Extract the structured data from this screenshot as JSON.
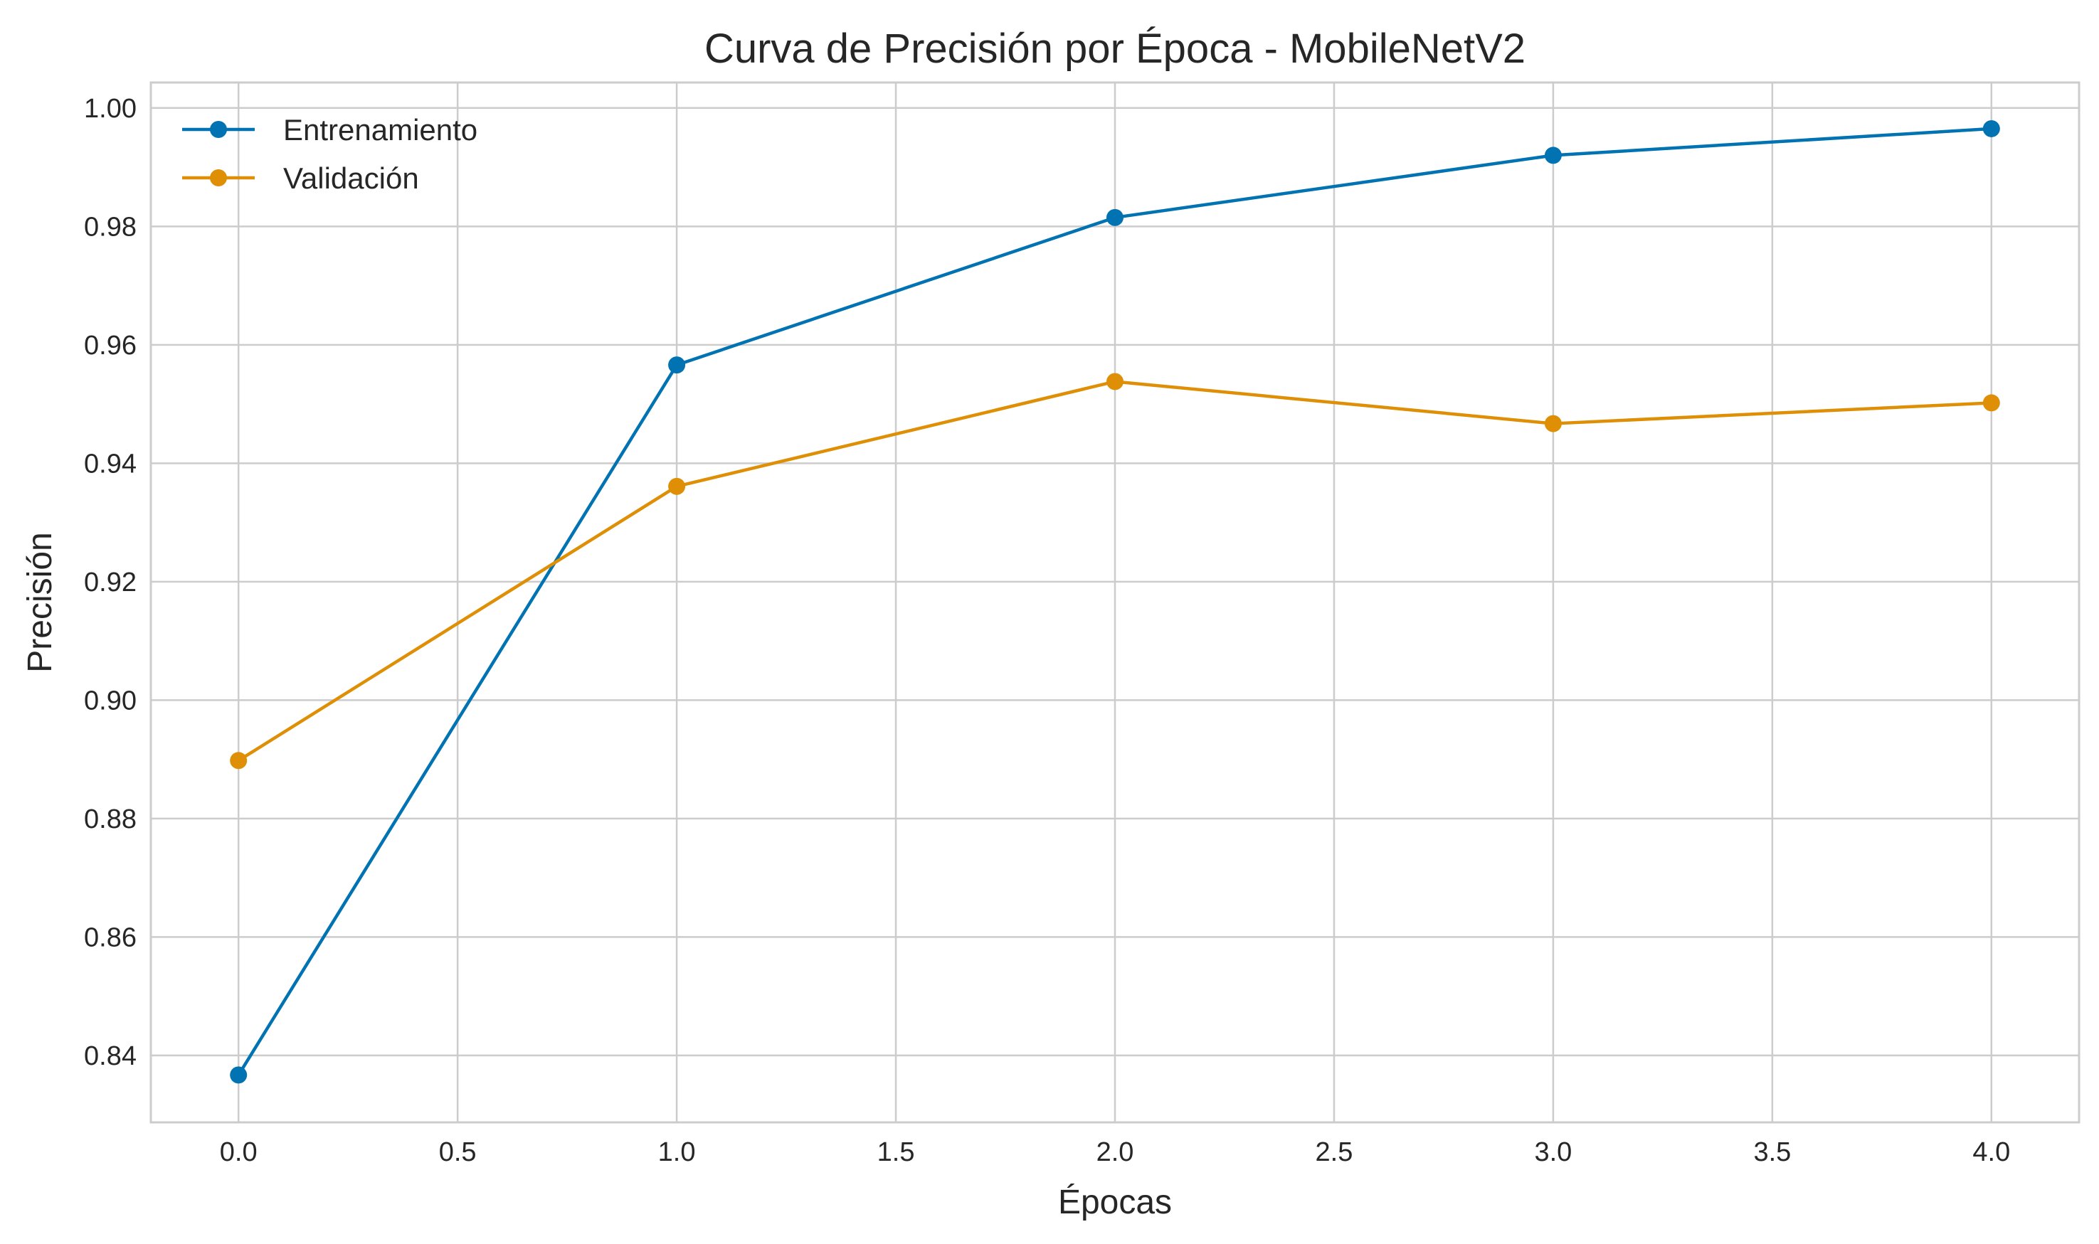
{
  "chart_data": {
    "type": "line",
    "title": "Curva de Precisión por Época - MobileNetV2",
    "xlabel": "Épocas",
    "ylabel": "Precisión",
    "xlim": [
      -0.2,
      4.2
    ],
    "ylim": [
      0.8287,
      1.0043
    ],
    "xticks": [
      0.0,
      0.5,
      1.0,
      1.5,
      2.0,
      2.5,
      3.0,
      3.5,
      4.0
    ],
    "xtick_labels": [
      "0.0",
      "0.5",
      "1.0",
      "1.5",
      "2.0",
      "2.5",
      "3.0",
      "3.5",
      "4.0"
    ],
    "yticks": [
      0.84,
      0.86,
      0.88,
      0.9,
      0.92,
      0.94,
      0.96,
      0.98,
      1.0
    ],
    "ytick_labels": [
      "0.84",
      "0.86",
      "0.88",
      "0.90",
      "0.92",
      "0.94",
      "0.96",
      "0.98",
      "1.00"
    ],
    "grid": true,
    "legend_position": "top-left",
    "x": [
      0,
      1,
      2,
      3,
      4
    ],
    "series": [
      {
        "name": "Entrenamiento",
        "color": "#0173b2",
        "marker": "circle",
        "values": [
          0.8367,
          0.9566,
          0.9815,
          0.992,
          0.9965
        ]
      },
      {
        "name": "Validación",
        "color": "#de8f05",
        "marker": "circle",
        "values": [
          0.8898,
          0.9361,
          0.9538,
          0.9467,
          0.9502
        ]
      }
    ]
  }
}
